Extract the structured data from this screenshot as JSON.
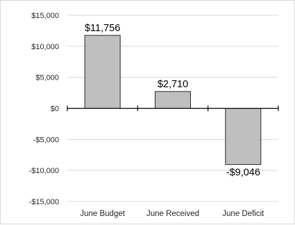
{
  "chart_data": {
    "type": "bar",
    "categories": [
      "June Budget",
      "June Received",
      "June Deficit"
    ],
    "values": [
      11756,
      2710,
      -9046
    ],
    "data_labels": [
      "$11,756",
      "$2,710",
      "-$9,046"
    ],
    "title": "",
    "xlabel": "",
    "ylabel": "",
    "ylim": [
      -15000,
      15000
    ],
    "yticks": [
      15000,
      10000,
      5000,
      0,
      -5000,
      -10000,
      -15000
    ],
    "ytick_labels": [
      "$15,000",
      "$10,000",
      "$5,000",
      "$0",
      "-$5,000",
      "-$10,000",
      "-$15,000"
    ],
    "grid": true,
    "legend": "none",
    "colors": {
      "bar_fill": "#bfbfbf",
      "bar_stroke": "#262626",
      "grid": "#d9d9d9",
      "axis": "#000000"
    }
  }
}
